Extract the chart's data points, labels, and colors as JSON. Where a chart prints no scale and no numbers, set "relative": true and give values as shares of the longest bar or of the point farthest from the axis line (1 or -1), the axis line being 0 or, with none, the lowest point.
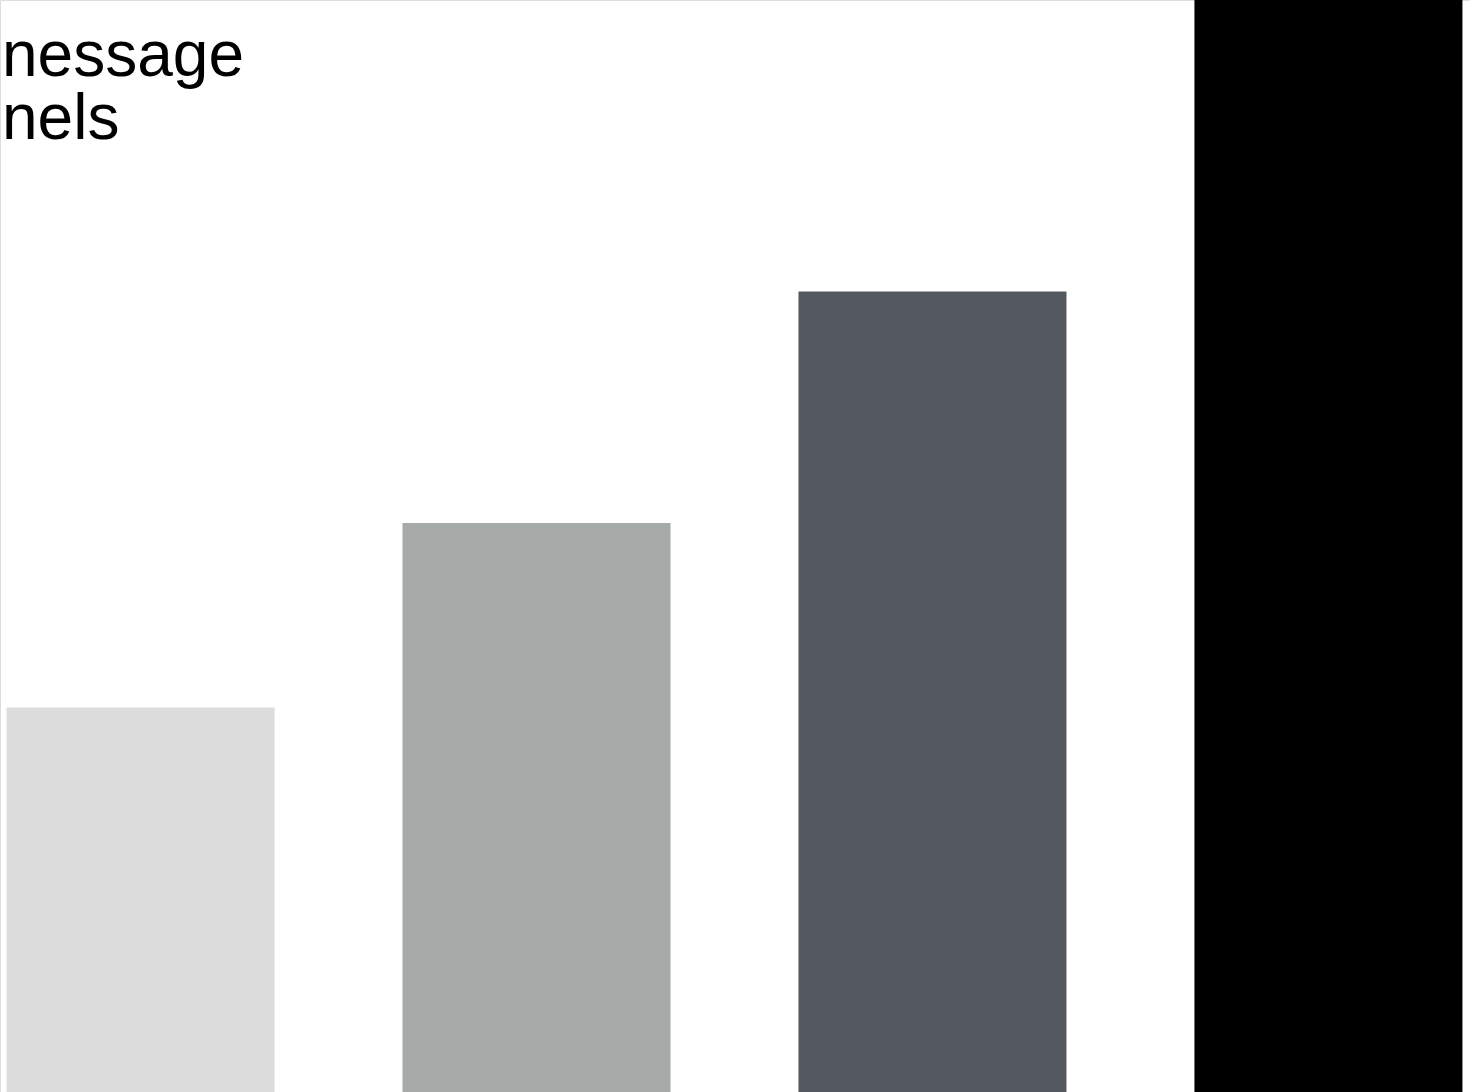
{
  "chart_data": {
    "type": "bar",
    "relative": true,
    "categories": [
      null,
      null,
      null,
      null
    ],
    "values": [
      0.352,
      0.521,
      0.733,
      1
    ],
    "colors": [
      "#dcdcdc",
      "#a6aaa9",
      "#545861",
      "#000000"
    ],
    "annotations": [
      "nessage",
      "nels"
    ]
  }
}
